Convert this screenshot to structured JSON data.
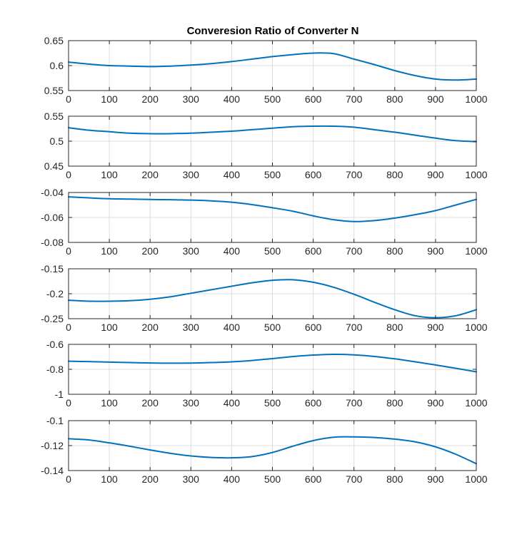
{
  "figure": {
    "title": "Converesion Ratio of Converter N"
  },
  "chart_data": [
    {
      "type": "line",
      "title": "Converesion Ratio of Converter N",
      "xlim": [
        0,
        1000
      ],
      "ylim": [
        0.55,
        0.65
      ],
      "xticks": [
        0,
        100,
        200,
        300,
        400,
        500,
        600,
        700,
        800,
        900,
        1000
      ],
      "yticks": [
        0.55,
        0.6,
        0.65
      ],
      "xtick_labels": [
        "0",
        "100",
        "200",
        "300",
        "400",
        "500",
        "600",
        "700",
        "800",
        "900",
        "1000"
      ],
      "ytick_labels": [
        "0.55",
        "0.6",
        "0.65"
      ],
      "grid": true,
      "color": "#0072BD",
      "x": [
        0,
        50,
        100,
        150,
        200,
        250,
        300,
        350,
        400,
        450,
        500,
        550,
        600,
        650,
        700,
        750,
        800,
        850,
        900,
        950,
        1000
      ],
      "y": [
        0.607,
        0.603,
        0.6,
        0.599,
        0.598,
        0.599,
        0.601,
        0.604,
        0.608,
        0.613,
        0.618,
        0.622,
        0.625,
        0.624,
        0.613,
        0.602,
        0.59,
        0.58,
        0.573,
        0.571,
        0.573
      ]
    },
    {
      "type": "line",
      "title": "",
      "xlim": [
        0,
        1000
      ],
      "ylim": [
        0.45,
        0.55
      ],
      "xticks": [
        0,
        100,
        200,
        300,
        400,
        500,
        600,
        700,
        800,
        900,
        1000
      ],
      "yticks": [
        0.45,
        0.5,
        0.55
      ],
      "xtick_labels": [
        "0",
        "100",
        "200",
        "300",
        "400",
        "500",
        "600",
        "700",
        "800",
        "900",
        "1000"
      ],
      "ytick_labels": [
        "0.45",
        "0.5",
        "0.55"
      ],
      "grid": true,
      "color": "#0072BD",
      "x": [
        0,
        50,
        100,
        150,
        200,
        250,
        300,
        350,
        400,
        450,
        500,
        550,
        600,
        650,
        700,
        750,
        800,
        850,
        900,
        950,
        1000
      ],
      "y": [
        0.527,
        0.522,
        0.519,
        0.516,
        0.515,
        0.515,
        0.516,
        0.518,
        0.52,
        0.523,
        0.526,
        0.529,
        0.53,
        0.53,
        0.528,
        0.523,
        0.518,
        0.512,
        0.506,
        0.501,
        0.499
      ]
    },
    {
      "type": "line",
      "title": "",
      "xlim": [
        0,
        1000
      ],
      "ylim": [
        -0.08,
        -0.04
      ],
      "xticks": [
        0,
        100,
        200,
        300,
        400,
        500,
        600,
        700,
        800,
        900,
        1000
      ],
      "yticks": [
        -0.08,
        -0.06,
        -0.04
      ],
      "xtick_labels": [
        "0",
        "100",
        "200",
        "300",
        "400",
        "500",
        "600",
        "700",
        "800",
        "900",
        "1000"
      ],
      "ytick_labels": [
        "-0.08",
        "-0.06",
        "-0.04"
      ],
      "grid": true,
      "color": "#0072BD",
      "x": [
        0,
        50,
        100,
        150,
        200,
        250,
        300,
        350,
        400,
        450,
        500,
        550,
        600,
        650,
        700,
        750,
        800,
        850,
        900,
        950,
        1000
      ],
      "y": [
        -0.0435,
        -0.0443,
        -0.045,
        -0.0453,
        -0.0456,
        -0.0458,
        -0.0461,
        -0.0467,
        -0.0478,
        -0.0497,
        -0.0522,
        -0.055,
        -0.0587,
        -0.0618,
        -0.0633,
        -0.0625,
        -0.0605,
        -0.0578,
        -0.0545,
        -0.05,
        -0.0455
      ]
    },
    {
      "type": "line",
      "title": "",
      "xlim": [
        0,
        1000
      ],
      "ylim": [
        -0.25,
        -0.15
      ],
      "xticks": [
        0,
        100,
        200,
        300,
        400,
        500,
        600,
        700,
        800,
        900,
        1000
      ],
      "yticks": [
        -0.25,
        -0.2,
        -0.15
      ],
      "xtick_labels": [
        "0",
        "100",
        "200",
        "300",
        "400",
        "500",
        "600",
        "700",
        "800",
        "900",
        "1000"
      ],
      "ytick_labels": [
        "-0.25",
        "-0.2",
        "-0.15"
      ],
      "grid": true,
      "color": "#0072BD",
      "x": [
        0,
        50,
        100,
        150,
        200,
        250,
        300,
        350,
        400,
        450,
        500,
        550,
        600,
        650,
        700,
        750,
        800,
        850,
        900,
        950,
        1000
      ],
      "y": [
        -0.213,
        -0.215,
        -0.215,
        -0.214,
        -0.211,
        -0.206,
        -0.199,
        -0.192,
        -0.185,
        -0.178,
        -0.173,
        -0.172,
        -0.177,
        -0.187,
        -0.201,
        -0.217,
        -0.232,
        -0.244,
        -0.248,
        -0.244,
        -0.232
      ]
    },
    {
      "type": "line",
      "title": "",
      "xlim": [
        0,
        1000
      ],
      "ylim": [
        -1,
        -0.6
      ],
      "xticks": [
        0,
        100,
        200,
        300,
        400,
        500,
        600,
        700,
        800,
        900,
        1000
      ],
      "yticks": [
        -1,
        -0.8,
        -0.6
      ],
      "xtick_labels": [
        "0",
        "100",
        "200",
        "300",
        "400",
        "500",
        "600",
        "700",
        "800",
        "900",
        "1000"
      ],
      "ytick_labels": [
        "-1",
        "-0.8",
        "-0.6"
      ],
      "grid": true,
      "color": "#0072BD",
      "x": [
        0,
        50,
        100,
        150,
        200,
        250,
        300,
        350,
        400,
        450,
        500,
        550,
        600,
        650,
        700,
        750,
        800,
        850,
        900,
        950,
        1000
      ],
      "y": [
        -0.735,
        -0.738,
        -0.742,
        -0.746,
        -0.749,
        -0.751,
        -0.75,
        -0.746,
        -0.74,
        -0.729,
        -0.714,
        -0.698,
        -0.686,
        -0.68,
        -0.684,
        -0.697,
        -0.716,
        -0.74,
        -0.765,
        -0.792,
        -0.82
      ]
    },
    {
      "type": "line",
      "title": "",
      "xlim": [
        0,
        1000
      ],
      "ylim": [
        -0.14,
        -0.1
      ],
      "xticks": [
        0,
        100,
        200,
        300,
        400,
        500,
        600,
        700,
        800,
        900,
        1000
      ],
      "yticks": [
        -0.14,
        -0.12,
        -0.1
      ],
      "xtick_labels": [
        "0",
        "100",
        "200",
        "300",
        "400",
        "500",
        "600",
        "700",
        "800",
        "900",
        "1000"
      ],
      "ytick_labels": [
        "-0.14",
        "-0.12",
        "-0.1"
      ],
      "grid": true,
      "color": "#0072BD",
      "x": [
        0,
        50,
        100,
        150,
        200,
        250,
        300,
        350,
        400,
        450,
        500,
        550,
        600,
        650,
        700,
        750,
        800,
        850,
        900,
        950,
        1000
      ],
      "y": [
        -0.1145,
        -0.1155,
        -0.1178,
        -0.1205,
        -0.1235,
        -0.1262,
        -0.1283,
        -0.1295,
        -0.1298,
        -0.1288,
        -0.1255,
        -0.1205,
        -0.116,
        -0.1133,
        -0.113,
        -0.1135,
        -0.1148,
        -0.117,
        -0.121,
        -0.127,
        -0.1345
      ]
    }
  ]
}
